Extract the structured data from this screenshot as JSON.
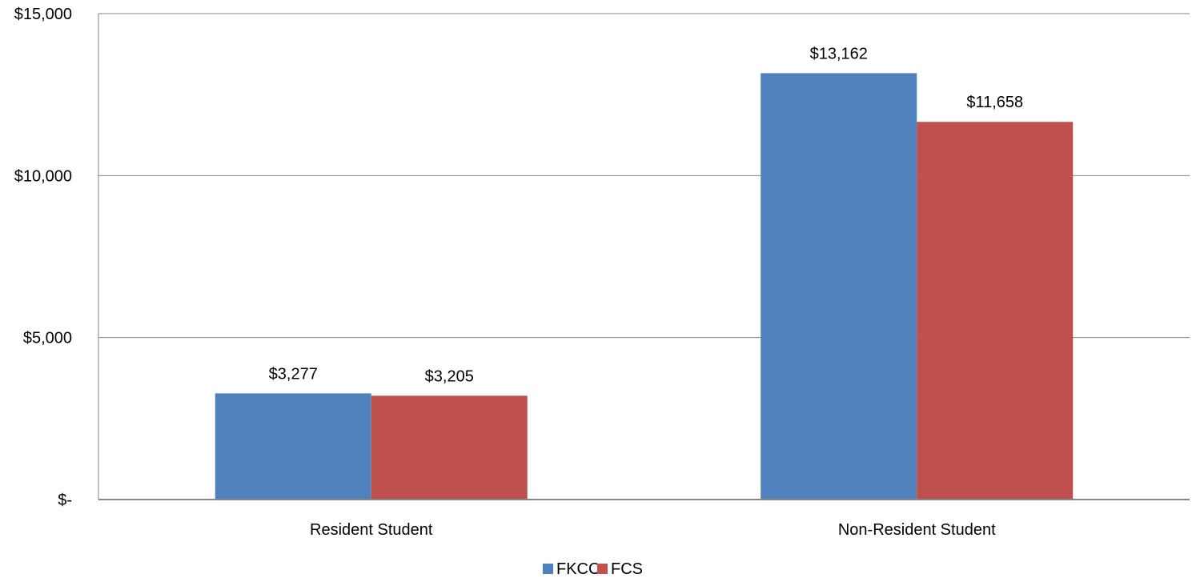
{
  "chart_data": {
    "type": "bar",
    "categories": [
      "Resident Student",
      "Non-Resident Student"
    ],
    "series": [
      {
        "name": "FKCC",
        "values": [
          3277,
          13162
        ],
        "color": "#4F81BD"
      },
      {
        "name": "FCS",
        "values": [
          3205,
          11658
        ],
        "color": "#C0504D"
      }
    ],
    "data_labels": [
      [
        "$3,277",
        "$13,162"
      ],
      [
        "$3,205",
        "$11,658"
      ]
    ],
    "ylim": [
      0,
      15000
    ],
    "y_ticks": [
      0,
      5000,
      10000,
      15000
    ],
    "y_tick_labels": [
      "$-",
      "$5,000",
      "$10,000",
      "$15,000"
    ],
    "grid": true,
    "legend_position": "bottom",
    "title": "",
    "xlabel": "",
    "ylabel": ""
  }
}
